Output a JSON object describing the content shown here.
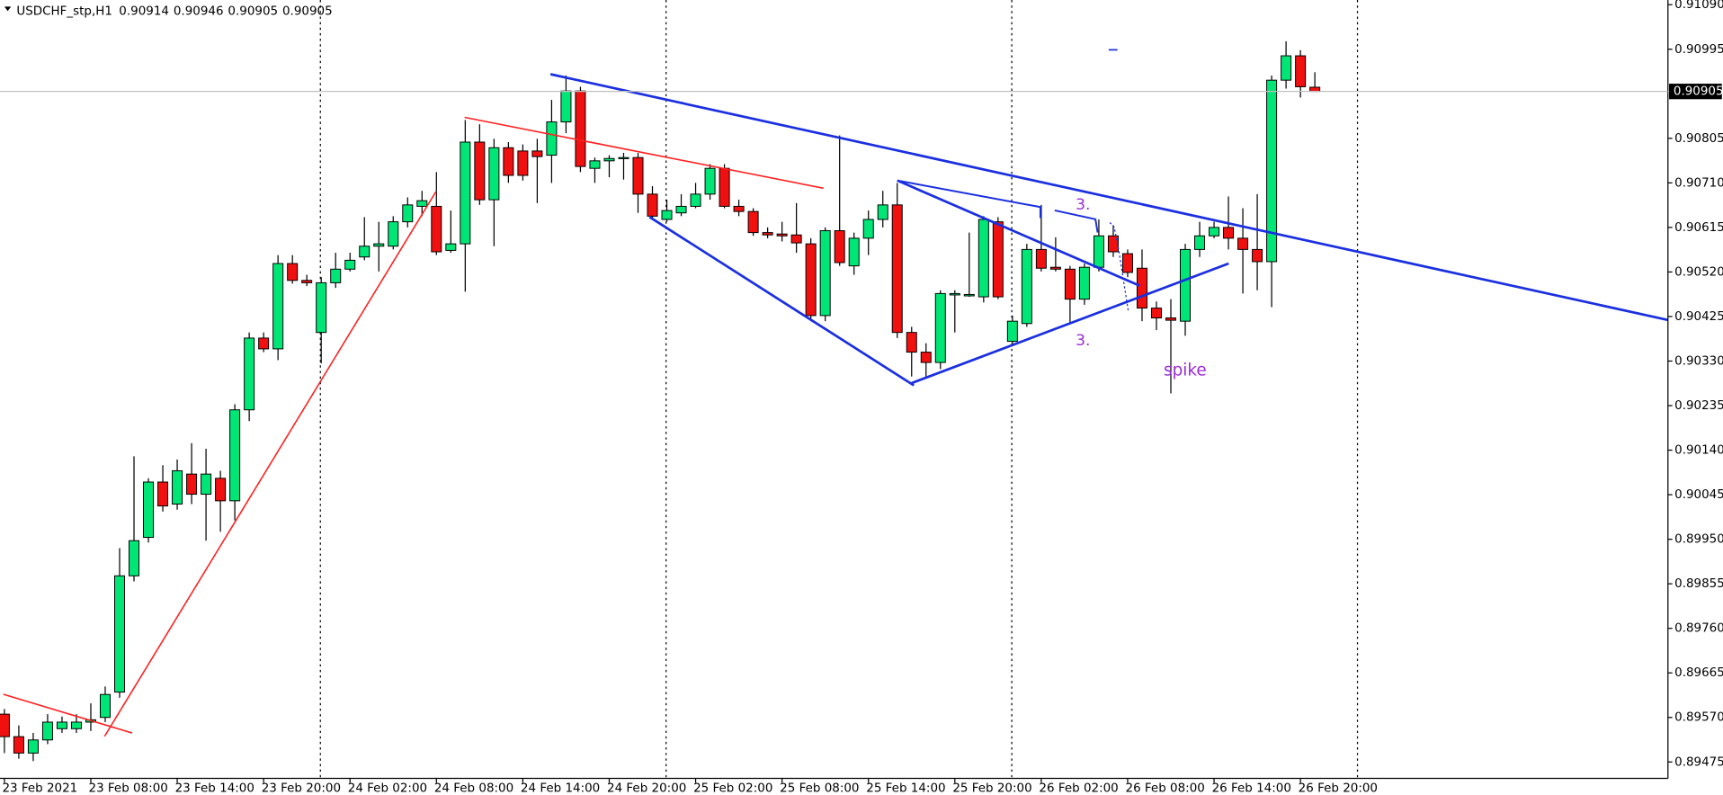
{
  "chart_data": {
    "type": "candlestick",
    "symbol": "USDCHF_stp,H1",
    "up_color": "#00e676",
    "down_color": "#f01010",
    "categories": [
      "23 Feb 2021",
      null,
      null,
      null,
      null,
      null,
      "23 Feb 08:00",
      null,
      null,
      null,
      null,
      null,
      "23 Feb 14:00",
      null,
      null,
      null,
      null,
      null,
      "23 Feb 20:00",
      null,
      null,
      null,
      null,
      null,
      "24 Feb 02:00",
      null,
      null,
      null,
      null,
      null,
      "24 Feb 08:00",
      null,
      null,
      null,
      null,
      null,
      "24 Feb 14:00",
      null,
      null,
      null,
      null,
      null,
      "24 Feb 20:00",
      null,
      null,
      null,
      null,
      null,
      "25 Feb 02:00",
      null,
      null,
      null,
      null,
      null,
      "25 Feb 08:00",
      null,
      null,
      null,
      null,
      null,
      "25 Feb 14:00",
      null,
      null,
      null,
      null,
      null,
      "25 Feb 20:00",
      null,
      null,
      null,
      null,
      null,
      "26 Feb 02:00",
      null,
      null,
      null,
      null,
      null,
      "26 Feb 08:00",
      null,
      null,
      null,
      null,
      null,
      "26 Feb 14:00",
      null,
      null,
      null,
      null,
      null,
      "26 Feb 20:00",
      null
    ],
    "open": [
      0.89577,
      0.89529,
      0.89494,
      0.89522,
      0.89546,
      0.89546,
      0.8956,
      0.8957,
      0.89624,
      0.89872,
      0.89954,
      0.90072,
      0.90025,
      0.90089,
      0.90046,
      0.9008,
      0.90032,
      0.90226,
      0.90379,
      0.90356,
      0.90538,
      0.90502,
      0.90391,
      0.90497,
      0.90526,
      0.90552,
      0.90575,
      0.90575,
      0.90627,
      0.9066,
      0.9066,
      0.90566,
      0.9058,
      0.90797,
      0.90674,
      0.90785,
      0.90778,
      0.90778,
      0.90769,
      0.9084,
      0.90906,
      0.90741,
      0.90757,
      0.90762,
      0.90764,
      0.90686,
      0.90632,
      0.90646,
      0.9066,
      0.90686,
      0.90741,
      0.9066,
      0.90649,
      0.90604,
      0.90601,
      0.90599,
      0.9058,
      0.90427,
      0.90608,
      0.90533,
      0.90592,
      0.90632,
      0.90663,
      0.90391,
      0.90349,
      0.90327,
      0.90471,
      0.90469,
      0.90467,
      0.90627,
      0.90372,
      0.9041,
      0.90568,
      0.9053,
      0.90526,
      0.90462,
      0.9053,
      0.90597,
      0.90559,
      0.90528,
      0.90443,
      0.90422,
      0.90415,
      0.90568,
      0.90597,
      0.90615,
      0.90592,
      0.90568,
      0.90542,
      0.90929,
      0.90981,
      0.90914
    ],
    "high": [
      0.89588,
      0.89553,
      0.89537,
      0.89577,
      0.89572,
      0.89577,
      0.896,
      0.89636,
      0.89931,
      0.90127,
      0.9008,
      0.90108,
      0.9012,
      0.90155,
      0.90143,
      0.90096,
      0.90238,
      0.90391,
      0.90391,
      0.90556,
      0.90556,
      0.90514,
      0.90509,
      0.90561,
      0.90561,
      0.90637,
      0.90627,
      0.90639,
      0.90679,
      0.90693,
      0.90733,
      0.90651,
      0.90844,
      0.90835,
      0.90804,
      0.90797,
      0.90792,
      0.90804,
      0.90887,
      0.90939,
      0.90915,
      0.90764,
      0.90769,
      0.90774,
      0.90774,
      0.90703,
      0.90674,
      0.90686,
      0.9071,
      0.9075,
      0.9075,
      0.90674,
      0.90656,
      0.90615,
      0.90627,
      0.90667,
      0.90592,
      0.90615,
      0.90811,
      0.90604,
      0.90651,
      0.90693,
      0.9071,
      0.90403,
      0.90368,
      0.90481,
      0.90481,
      0.90604,
      0.90639,
      0.90637,
      0.90427,
      0.9058,
      0.90663,
      0.90594,
      0.90533,
      0.90538,
      0.90632,
      0.9062,
      0.90568,
      0.90568,
      0.90457,
      0.90462,
      0.9058,
      0.90627,
      0.90627,
      0.90681,
      0.90656,
      0.90686,
      0.90939,
      0.91012,
      0.90993,
      0.90946
    ],
    "low": [
      0.89494,
      0.89482,
      0.89477,
      0.89513,
      0.89537,
      0.89537,
      0.89541,
      0.8956,
      0.89612,
      0.8986,
      0.89943,
      0.90009,
      0.90013,
      0.90025,
      0.89947,
      0.89966,
      0.8999,
      0.90202,
      0.90349,
      0.90332,
      0.90495,
      0.9049,
      0.90325,
      0.90486,
      0.90521,
      0.90545,
      0.90521,
      0.90568,
      0.90615,
      0.90639,
      0.90556,
      0.90561,
      0.90478,
      0.90663,
      0.90575,
      0.9071,
      0.90715,
      0.90667,
      0.9071,
      0.90816,
      0.90733,
      0.9071,
      0.90722,
      0.90717,
      0.90646,
      0.90632,
      0.90627,
      0.90639,
      0.90656,
      0.90674,
      0.90656,
      0.90639,
      0.90597,
      0.90592,
      0.90585,
      0.90561,
      0.90415,
      0.90415,
      0.90533,
      0.90514,
      0.90556,
      0.90615,
      0.90379,
      0.90297,
      0.90297,
      0.90313,
      0.90391,
      0.90467,
      0.90455,
      0.90462,
      0.90363,
      0.90403,
      0.90521,
      0.90521,
      0.9041,
      0.9045,
      0.90521,
      0.90552,
      0.90509,
      0.90415,
      0.90396,
      0.90261,
      0.90384,
      0.90552,
      0.90592,
      0.90568,
      0.90474,
      0.90481,
      0.90445,
      0.90911,
      0.90892,
      0.90905
    ],
    "close": [
      0.89529,
      0.89494,
      0.89522,
      0.8956,
      0.8956,
      0.8956,
      0.89565,
      0.89619,
      0.89872,
      0.89947,
      0.90072,
      0.90021,
      0.90096,
      0.90046,
      0.90089,
      0.90032,
      0.90226,
      0.90379,
      0.90356,
      0.90538,
      0.90502,
      0.90497,
      0.90497,
      0.90526,
      0.90545,
      0.90575,
      0.9058,
      0.90627,
      0.90663,
      0.90672,
      0.90563,
      0.9058,
      0.90797,
      0.90674,
      0.90785,
      0.90726,
      0.90726,
      0.90766,
      0.9084,
      0.90906,
      0.90745,
      0.90757,
      0.90762,
      0.90764,
      0.90686,
      0.90639,
      0.90651,
      0.9066,
      0.90686,
      0.90741,
      0.9066,
      0.90649,
      0.90604,
      0.90599,
      0.90597,
      0.90582,
      0.90427,
      0.90608,
      0.9054,
      0.90592,
      0.90632,
      0.90663,
      0.90391,
      0.90349,
      0.90327,
      0.90474,
      0.90474,
      0.90472,
      0.90632,
      0.90467,
      0.90415,
      0.90568,
      0.90528,
      0.90526,
      0.90462,
      0.9053,
      0.90597,
      0.90563,
      0.90519,
      0.90443,
      0.90422,
      0.90417,
      0.90568,
      0.90597,
      0.90615,
      0.90592,
      0.90568,
      0.90542,
      0.90929,
      0.90981,
      0.90915,
      0.90905
    ],
    "ylim": [
      0.8944,
      0.911
    ],
    "yticks": [
      {
        "value": 0.9109,
        "label": "0.91090"
      },
      0.90995,
      0.90805,
      {
        "value": 0.9071,
        "label": "0.90710"
      },
      0.90615,
      {
        "value": 0.9052,
        "label": "0.90520"
      },
      0.90425,
      {
        "value": 0.9033,
        "label": "0.90330"
      },
      0.90235,
      {
        "value": 0.9014,
        "label": "0.90140"
      },
      0.90045,
      {
        "value": 0.8995,
        "label": "0.89950"
      },
      0.89855,
      {
        "value": 0.8976,
        "label": "0.89760"
      },
      0.89665,
      {
        "value": 0.8957,
        "label": "0.89570"
      },
      0.89475
    ],
    "current_price": {
      "value": 0.90905,
      "label": "0.90905"
    },
    "annotations": [
      {
        "text": "3.",
        "color": "#9b2bd6"
      },
      {
        "text": "3.",
        "color": "#9b2bd6"
      },
      {
        "text": "spike",
        "color": "#9b2bd6"
      }
    ]
  }
}
